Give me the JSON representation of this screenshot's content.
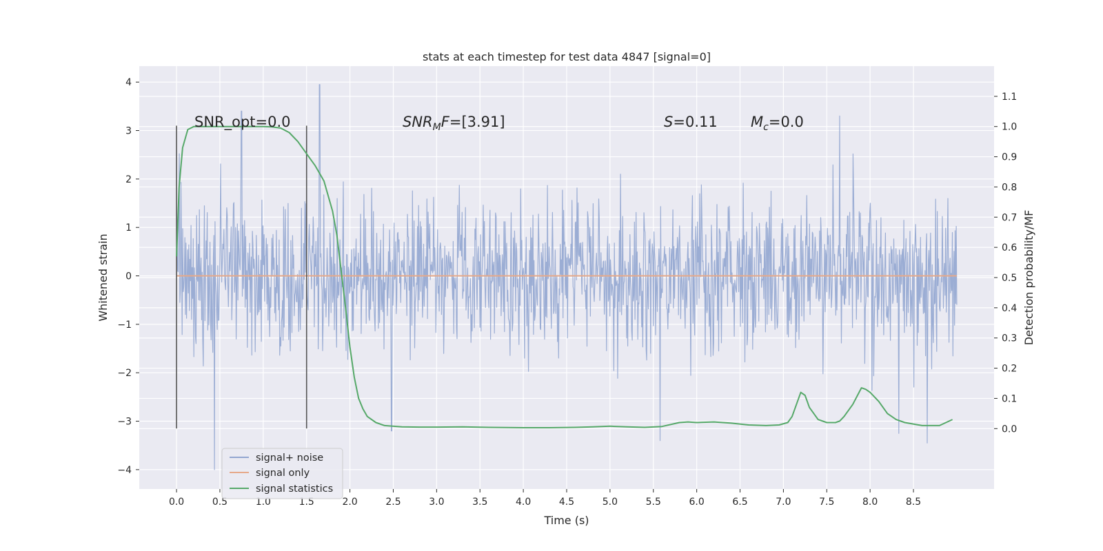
{
  "chart_data": {
    "type": "line",
    "title": "stats at each timestep for test data 4847 [signal=0]",
    "xlabel": "Time (s)",
    "ylabel": "Whitened strain",
    "ylabel_right": "Detection probability/MF",
    "xlim": [
      -0.43,
      9.43
    ],
    "ylim": [
      -4.4,
      4.33
    ],
    "ylim_right": [
      -0.2,
      1.2
    ],
    "x_ticks": [
      "0.0",
      "0.5",
      "1.0",
      "1.5",
      "2.0",
      "2.5",
      "3.0",
      "3.5",
      "4.0",
      "4.5",
      "5.0",
      "5.5",
      "6.0",
      "6.5",
      "7.0",
      "7.5",
      "8.0",
      "8.5"
    ],
    "x_tick_values": [
      0.0,
      0.5,
      1.0,
      1.5,
      2.0,
      2.5,
      3.0,
      3.5,
      4.0,
      4.5,
      5.0,
      5.5,
      6.0,
      6.5,
      7.0,
      7.5,
      8.0,
      8.5
    ],
    "y_ticks": [
      "4",
      "3",
      "2",
      "1",
      "0",
      "−1",
      "−2",
      "−3",
      "−4"
    ],
    "y_tick_values": [
      4,
      3,
      2,
      1,
      0,
      -1,
      -2,
      -3,
      -4
    ],
    "y_ticks_right": [
      "1.1",
      "1.0",
      "0.9",
      "0.8",
      "0.7",
      "0.6",
      "0.5",
      "0.4",
      "0.3",
      "0.2",
      "0.1",
      "0.0"
    ],
    "y_tick_values_right": [
      1.1,
      1.0,
      0.9,
      0.8,
      0.7,
      0.6,
      0.5,
      0.4,
      0.3,
      0.2,
      0.1,
      0.0
    ],
    "grid": true,
    "legend_position": "lower-left",
    "annotations": {
      "snr_opt": "SNR_opt=0.0",
      "snr_mf": "[3.91]",
      "s_value": "0.11",
      "mc_value": "0.0"
    },
    "vertical_markers_x": [
      0.0,
      1.5
    ],
    "series": [
      {
        "name": "signal+ noise",
        "color": "#92a6d0",
        "x_range": [
          0.0,
          9.0
        ],
        "noise_band": [
          -1.3,
          1.25
        ],
        "peak_spikes": [
          [
            0.44,
            -4.0
          ],
          [
            0.75,
            3.4
          ],
          [
            1.65,
            3.95
          ],
          [
            2.48,
            -3.2
          ],
          [
            5.58,
            -3.4
          ],
          [
            7.65,
            3.3
          ],
          [
            8.66,
            -3.45
          ]
        ]
      },
      {
        "name": "signal only",
        "color": "#dd8452",
        "x": [
          0.0,
          9.0
        ],
        "y": [
          0.0,
          0.0
        ]
      },
      {
        "name": "signal statistics",
        "color": "#55a868",
        "x": [
          0.0,
          0.03,
          0.07,
          0.13,
          0.2,
          0.35,
          0.5,
          0.8,
          1.0,
          1.1,
          1.2,
          1.3,
          1.4,
          1.5,
          1.6,
          1.7,
          1.8,
          1.85,
          1.9,
          1.95,
          2.0,
          2.05,
          2.1,
          2.15,
          2.2,
          2.3,
          2.4,
          2.6,
          2.8,
          3.0,
          3.3,
          3.6,
          4.0,
          4.3,
          4.6,
          4.8,
          5.0,
          5.2,
          5.4,
          5.6,
          5.8,
          5.9,
          6.0,
          6.2,
          6.4,
          6.6,
          6.8,
          6.95,
          7.05,
          7.1,
          7.15,
          7.2,
          7.25,
          7.3,
          7.4,
          7.5,
          7.6,
          7.65,
          7.7,
          7.8,
          7.9,
          7.95,
          8.0,
          8.1,
          8.2,
          8.3,
          8.4,
          8.6,
          8.8,
          8.95
        ],
        "y": [
          0.57,
          0.8,
          0.93,
          0.99,
          1.0,
          1.0,
          1.0,
          1.0,
          1.0,
          0.999,
          0.995,
          0.98,
          0.95,
          0.91,
          0.87,
          0.82,
          0.72,
          0.64,
          0.52,
          0.4,
          0.27,
          0.17,
          0.1,
          0.065,
          0.04,
          0.02,
          0.01,
          0.006,
          0.005,
          0.005,
          0.006,
          0.004,
          0.003,
          0.003,
          0.004,
          0.006,
          0.008,
          0.006,
          0.004,
          0.007,
          0.02,
          0.022,
          0.02,
          0.022,
          0.018,
          0.012,
          0.01,
          0.012,
          0.02,
          0.04,
          0.08,
          0.12,
          0.11,
          0.07,
          0.03,
          0.02,
          0.02,
          0.025,
          0.04,
          0.08,
          0.135,
          0.13,
          0.12,
          0.09,
          0.05,
          0.03,
          0.02,
          0.01,
          0.01,
          0.03
        ]
      }
    ]
  }
}
